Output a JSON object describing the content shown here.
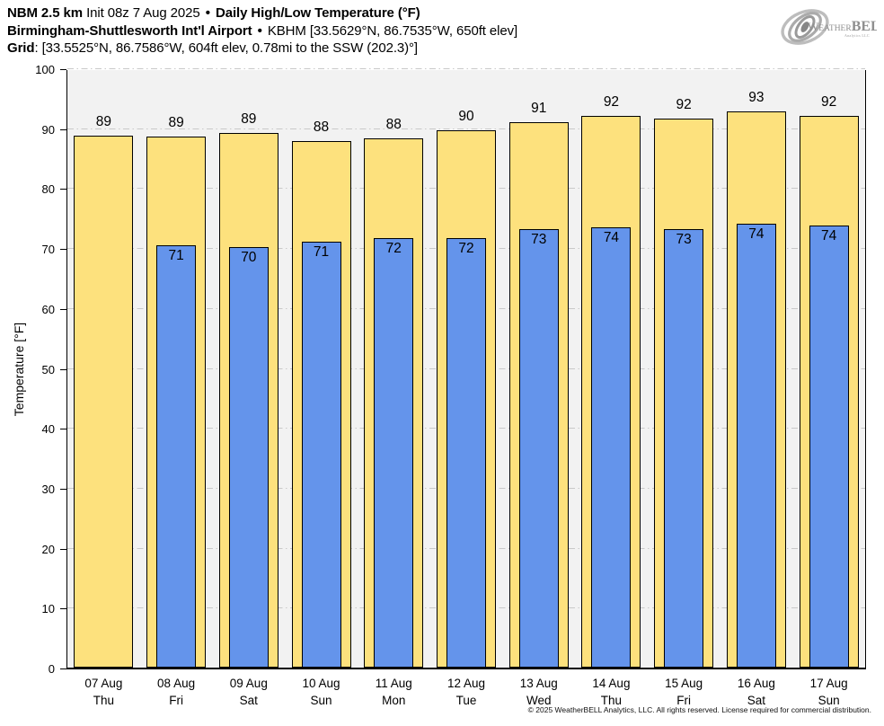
{
  "header": {
    "line1": {
      "model": "NBM 2.5 km",
      "init": "Init 08z 7 Aug 2025",
      "bullet": "•",
      "title": "Daily High/Low Temperature (°F)"
    },
    "line2": {
      "station": "Birmingham-Shuttlesworth Int'l Airport",
      "bullet": "•",
      "details": "KBHM [33.5629°N, 86.7535°W, 650ft elev]"
    },
    "line3": {
      "label": "Grid",
      "details": ": [33.5525°N, 86.7586°W, 604ft elev, 0.78mi to the SSW (202.3)°]"
    }
  },
  "logo": {
    "part1": "W",
    "part2": "EATHER",
    "part3": "BELL",
    "sub": "Analytics LLC"
  },
  "footer": {
    "copyright": "© 2025 WeatherBELL Analytics, LLC. All rights reserved. License required for commercial distribution."
  },
  "chart_data": {
    "type": "bar",
    "title": "Daily High/Low Temperature (°F)",
    "ylabel": "Temperature [°F]",
    "ylim": [
      0,
      100
    ],
    "ytick_step": 10,
    "yticks": [
      0,
      10,
      20,
      30,
      40,
      50,
      60,
      70,
      80,
      90,
      100
    ],
    "grid": "horizontal dash-dot",
    "grid_color": "#c9c9c9",
    "plot_bg": "#f2f2f2",
    "legend": "none",
    "categories": [
      "07 Aug",
      "08 Aug",
      "09 Aug",
      "10 Aug",
      "11 Aug",
      "12 Aug",
      "13 Aug",
      "14 Aug",
      "15 Aug",
      "16 Aug",
      "17 Aug"
    ],
    "weekdays": [
      "Thu",
      "Fri",
      "Sat",
      "Sun",
      "Mon",
      "Tue",
      "Wed",
      "Thu",
      "Fri",
      "Sat",
      "Sun"
    ],
    "series": [
      {
        "name": "Daily High",
        "color": "#fde17d",
        "labels": [
          89,
          89,
          89,
          88,
          88,
          90,
          91,
          92,
          92,
          93,
          92
        ],
        "values": [
          88.7,
          88.6,
          89.2,
          87.8,
          88.3,
          89.6,
          91.0,
          92.0,
          91.6,
          92.8,
          92.0
        ]
      },
      {
        "name": "Daily Low",
        "color": "#6494eb",
        "labels": [
          null,
          71,
          70,
          71,
          72,
          72,
          73,
          74,
          73,
          74,
          74
        ],
        "values": [
          null,
          70.4,
          70.1,
          71.1,
          71.6,
          71.6,
          73.1,
          73.4,
          73.2,
          74.1,
          73.8
        ]
      }
    ]
  }
}
